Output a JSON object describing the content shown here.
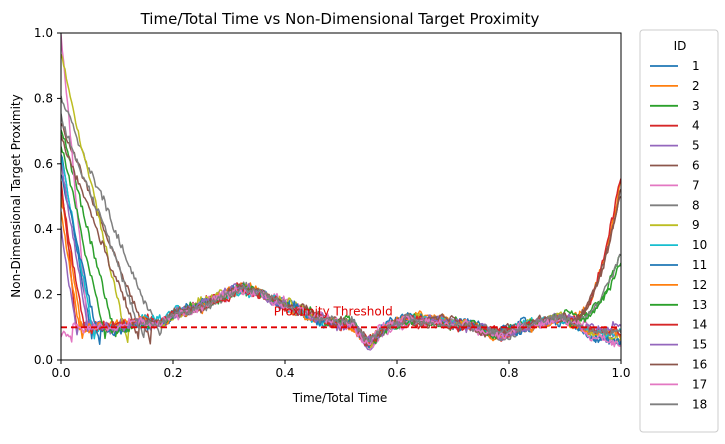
{
  "chart_data": {
    "type": "line",
    "title": "Time/Total Time vs Non-Dimensional Target Proximity",
    "xlabel": "Time/Total Time",
    "ylabel": "Non-Dimensional Target Proximity",
    "xlim": [
      0.0,
      1.0
    ],
    "ylim": [
      0.0,
      1.0
    ],
    "x_ticks": [
      "0.0",
      "0.2",
      "0.4",
      "0.6",
      "0.8",
      "1.0"
    ],
    "y_ticks": [
      "0.0",
      "0.2",
      "0.4",
      "0.6",
      "0.8",
      "1.0"
    ],
    "grid": false,
    "legend": {
      "title": "ID",
      "placement": "outside-right"
    },
    "threshold": {
      "y": 0.1,
      "label": "Proximity Threshold",
      "color": "#e00000",
      "style": "dashed",
      "label_x": 0.38
    },
    "common_path": {
      "x": [
        0.1,
        0.14,
        0.18,
        0.2,
        0.24,
        0.28,
        0.32,
        0.36,
        0.4,
        0.44,
        0.48,
        0.52,
        0.55,
        0.58,
        0.62,
        0.66,
        0.7,
        0.74,
        0.78,
        0.82,
        0.86,
        0.9,
        0.93,
        0.96,
        1.0
      ],
      "y": [
        0.1,
        0.12,
        0.11,
        0.14,
        0.16,
        0.19,
        0.22,
        0.2,
        0.17,
        0.14,
        0.12,
        0.11,
        0.05,
        0.1,
        0.13,
        0.12,
        0.11,
        0.1,
        0.08,
        0.1,
        0.12,
        0.13,
        0.1,
        0.08,
        0.08
      ]
    },
    "series": [
      {
        "name": "1",
        "color": "#1f77b4",
        "start": 0.63,
        "reach": 0.055,
        "end": 0.06
      },
      {
        "name": "2",
        "color": "#ff7f0e",
        "start": 0.5,
        "reach": 0.04,
        "end": 0.56
      },
      {
        "name": "3",
        "color": "#2ca02c",
        "start": 0.7,
        "reach": 0.1,
        "end": 0.32
      },
      {
        "name": "4",
        "color": "#d62728",
        "start": 0.55,
        "reach": 0.03,
        "end": 0.57
      },
      {
        "name": "5",
        "color": "#9467bd",
        "start": 0.4,
        "reach": 0.03,
        "end": 0.07
      },
      {
        "name": "6",
        "color": "#8c564b",
        "start": 0.72,
        "reach": 0.16,
        "end": 0.52
      },
      {
        "name": "7",
        "color": "#e377c2",
        "start": 1.0,
        "reach": 0.05,
        "end": 0.05
      },
      {
        "name": "8",
        "color": "#7f7f7f",
        "start": 0.8,
        "reach": 0.18,
        "end": 0.33
      },
      {
        "name": "9",
        "color": "#bcbd22",
        "start": 0.93,
        "reach": 0.12,
        "end": 0.07
      },
      {
        "name": "10",
        "color": "#17becf",
        "start": 0.62,
        "reach": 0.06,
        "end": 0.08
      },
      {
        "name": "11",
        "color": "#1f77b4",
        "start": 0.58,
        "reach": 0.07,
        "end": 0.05
      },
      {
        "name": "12",
        "color": "#ff7f0e",
        "start": 0.45,
        "reach": 0.035,
        "end": 0.08
      },
      {
        "name": "13",
        "color": "#2ca02c",
        "start": 0.66,
        "reach": 0.08,
        "end": 0.3
      },
      {
        "name": "14",
        "color": "#d62728",
        "start": 0.52,
        "reach": 0.045,
        "end": 0.09
      },
      {
        "name": "15",
        "color": "#9467bd",
        "start": 0.6,
        "reach": 0.05,
        "end": 0.1
      },
      {
        "name": "16",
        "color": "#8c564b",
        "start": 0.68,
        "reach": 0.14,
        "end": 0.54
      },
      {
        "name": "17",
        "color": "#e377c2",
        "start": 0.08,
        "reach": 0.02,
        "end": 0.06
      },
      {
        "name": "18",
        "color": "#7f7f7f",
        "start": 0.75,
        "reach": 0.15,
        "end": 0.1
      }
    ]
  }
}
